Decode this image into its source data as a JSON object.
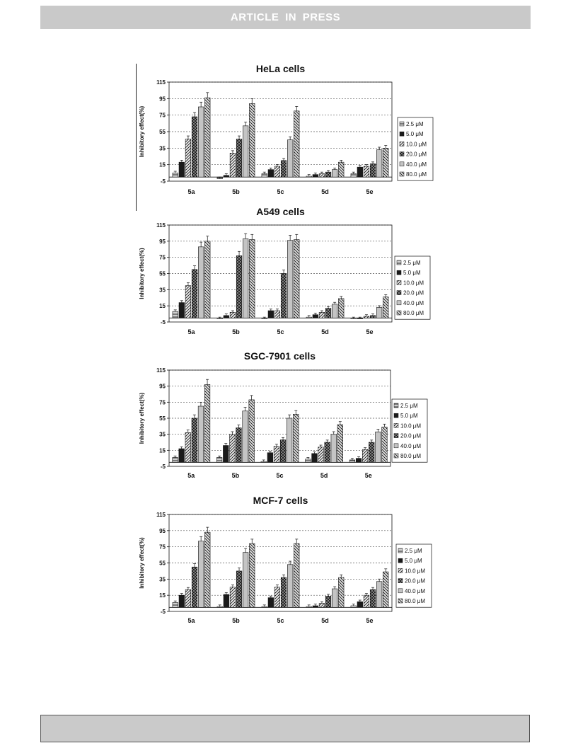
{
  "header": {
    "title": "ARTICLE IN PRESS"
  },
  "chart_data": [
    {
      "type": "bar",
      "title": "HeLa cells",
      "ylabel": "Inhibitory effect(%)",
      "ylim": [
        -5,
        115
      ],
      "yticks": [
        115,
        95,
        75,
        55,
        35,
        15,
        -5
      ],
      "grid": true,
      "legend": "right",
      "categories": [
        "5a",
        "5b",
        "5c",
        "5d",
        "5e"
      ],
      "series": [
        {
          "name": "2.5 μM",
          "values": [
            5,
            -2,
            4,
            1,
            4
          ]
        },
        {
          "name": "5.0 μM",
          "values": [
            18,
            2,
            9,
            3,
            12
          ]
        },
        {
          "name": "10.0 μM",
          "values": [
            46,
            29,
            13,
            4,
            13
          ]
        },
        {
          "name": "20.0 μM",
          "values": [
            73,
            46,
            20,
            6,
            16
          ]
        },
        {
          "name": "40.0 μM",
          "values": [
            85,
            62,
            45,
            9,
            33
          ]
        },
        {
          "name": "80.0 μM",
          "values": [
            96,
            89,
            80,
            18,
            35
          ]
        }
      ]
    },
    {
      "type": "bar",
      "title": "A549 cells",
      "ylabel": "Inhibitory effect(%)",
      "ylim": [
        -5,
        115
      ],
      "yticks": [
        115,
        95,
        75,
        55,
        35,
        15,
        -5
      ],
      "grid": true,
      "legend": "right",
      "categories": [
        "5a",
        "5b",
        "5c",
        "5d",
        "5e"
      ],
      "series": [
        {
          "name": "2.5 μM",
          "values": [
            8,
            -1,
            -1,
            1,
            -1
          ]
        },
        {
          "name": "5.0 μM",
          "values": [
            19,
            3,
            9,
            4,
            -1
          ]
        },
        {
          "name": "10.0 μM",
          "values": [
            40,
            7,
            9,
            7,
            2
          ]
        },
        {
          "name": "20.0 μM",
          "values": [
            60,
            77,
            55,
            12,
            3
          ]
        },
        {
          "name": "40.0 μM",
          "values": [
            88,
            98,
            96,
            17,
            13
          ]
        },
        {
          "name": "80.0 μM",
          "values": [
            95,
            97,
            97,
            24,
            26
          ]
        }
      ]
    },
    {
      "type": "bar",
      "title": "SGC-7901 cells",
      "ylabel": "Inhibitory effect(%)",
      "ylim": [
        -5,
        115
      ],
      "yticks": [
        115,
        95,
        75,
        55,
        35,
        15,
        -5
      ],
      "grid": true,
      "legend": "right",
      "categories": [
        "5a",
        "5b",
        "5c",
        "5d",
        "5e"
      ],
      "series": [
        {
          "name": "2.5 μM",
          "values": [
            6,
            6,
            1,
            4,
            3
          ]
        },
        {
          "name": "5.0 μM",
          "values": [
            17,
            21,
            12,
            11,
            5
          ]
        },
        {
          "name": "10.0 μM",
          "values": [
            37,
            35,
            20,
            19,
            16
          ]
        },
        {
          "name": "20.0 μM",
          "values": [
            55,
            43,
            28,
            25,
            25
          ]
        },
        {
          "name": "40.0 μM",
          "values": [
            70,
            64,
            55,
            35,
            38
          ]
        },
        {
          "name": "80.0 μM",
          "values": [
            97,
            78,
            60,
            47,
            44
          ]
        }
      ]
    },
    {
      "type": "bar",
      "title": "MCF-7 cells",
      "ylabel": "Inhibitory effect(%)",
      "ylim": [
        -5,
        115
      ],
      "yticks": [
        115,
        95,
        75,
        55,
        35,
        15,
        -5
      ],
      "grid": true,
      "legend": "right",
      "categories": [
        "5a",
        "5b",
        "5c",
        "5d",
        "5e"
      ],
      "series": [
        {
          "name": "2.5 μM",
          "values": [
            6,
            1,
            1,
            1,
            2
          ]
        },
        {
          "name": "5.0 μM",
          "values": [
            15,
            16,
            12,
            2,
            7
          ]
        },
        {
          "name": "10.0 μM",
          "values": [
            22,
            25,
            25,
            5,
            15
          ]
        },
        {
          "name": "20.0 μM",
          "values": [
            50,
            45,
            37,
            14,
            22
          ]
        },
        {
          "name": "40.0 μM",
          "values": [
            82,
            68,
            53,
            23,
            32
          ]
        },
        {
          "name": "80.0 μM",
          "values": [
            93,
            79,
            79,
            37,
            44
          ]
        }
      ]
    }
  ]
}
